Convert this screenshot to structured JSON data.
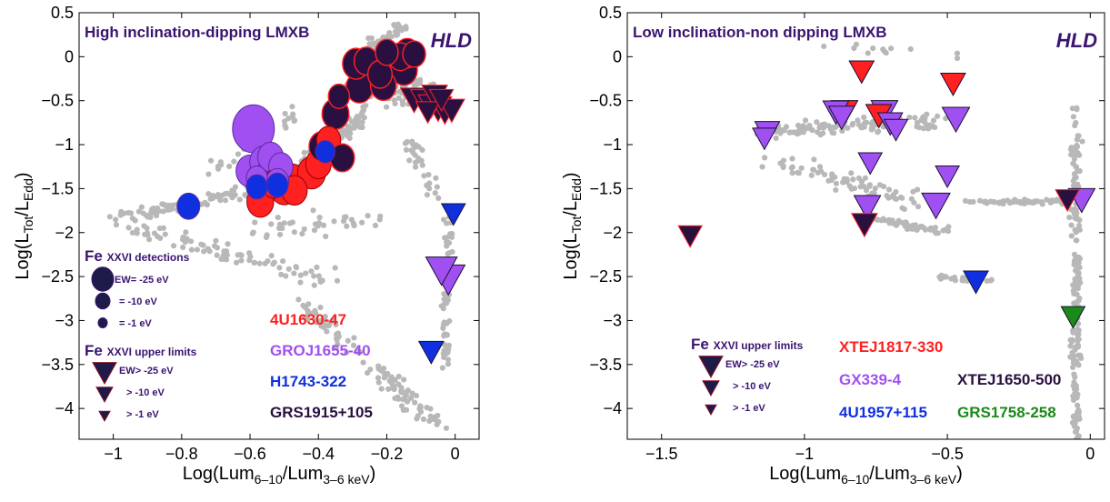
{
  "chart_data": [
    {
      "type": "scatter",
      "xlabel": "Log(Lum_{6–10}/Lum_{3–6 keV})",
      "ylabel": "Log(L_{Tot}/L_{Edd})",
      "xlim": [
        -1.1,
        0.07
      ],
      "ylim": [
        -4.35,
        0.5
      ],
      "xticks": [
        -1,
        -0.8,
        -0.6,
        -0.4,
        -0.2,
        0
      ],
      "xtick_labels": [
        "−1",
        "−0.8",
        "−0.6",
        "−0.4",
        "−0.2",
        "0"
      ],
      "yticks": [
        0.5,
        0,
        -0.5,
        -1,
        -1.5,
        -2,
        -2.5,
        -3,
        -3.5,
        -4
      ],
      "ytick_labels": [
        "0.5",
        "0",
        "−0.5",
        "−1",
        "−1.5",
        "−2",
        "−2.5",
        "−3",
        "−3.5",
        "−4"
      ],
      "panel_title": "High inclination-dipping LMXB",
      "panel_tag": "HLD",
      "legend": {
        "detections_title": [
          "Fe",
          "XXVI detections"
        ],
        "detections": [
          "EW= -25 eV",
          "= -10 eV",
          "= -1 eV"
        ],
        "limits_title": [
          "Fe",
          "XXVI upper limits"
        ],
        "limits": [
          "EW> -25 eV",
          "> -10 eV",
          "> -1 eV"
        ]
      },
      "sources": [
        {
          "name": "4U1630-47",
          "color": "#ff2020"
        },
        {
          "name": "GROJ1655-40",
          "color": "#a050f0"
        },
        {
          "name": "H1743-322",
          "color": "#1030e0"
        },
        {
          "name": "GRS1915+105",
          "color": "#2a1040"
        }
      ],
      "detections": [
        {
          "source": "GROJ1655-40",
          "x": -0.59,
          "y": -0.82,
          "ew": 25
        },
        {
          "source": "GROJ1655-40",
          "x": -0.6,
          "y": -1.3,
          "ew": 9
        },
        {
          "source": "GROJ1655-40",
          "x": -0.56,
          "y": -1.2,
          "ew": 9
        },
        {
          "source": "GROJ1655-40",
          "x": -0.54,
          "y": -1.14,
          "ew": 7
        },
        {
          "source": "GROJ1655-40",
          "x": -0.54,
          "y": -1.32,
          "ew": 8
        },
        {
          "source": "GROJ1655-40",
          "x": -0.51,
          "y": -1.25,
          "ew": 6
        },
        {
          "source": "GROJ1655-40",
          "x": -0.52,
          "y": -1.42,
          "ew": 5
        },
        {
          "source": "GROJ1655-40",
          "x": -0.58,
          "y": -1.38,
          "ew": 4
        },
        {
          "source": "4U1630-47",
          "x": -0.57,
          "y": -1.65,
          "ew": 8
        },
        {
          "source": "4U1630-47",
          "x": -0.5,
          "y": -1.5,
          "ew": 9
        },
        {
          "source": "4U1630-47",
          "x": -0.48,
          "y": -1.4,
          "ew": 9
        },
        {
          "source": "4U1630-47",
          "x": -0.42,
          "y": -1.32,
          "ew": 9
        },
        {
          "source": "4U1630-47",
          "x": -0.47,
          "y": -1.52,
          "ew": 7
        },
        {
          "source": "4U1630-47",
          "x": -0.4,
          "y": -1.22,
          "ew": 7
        },
        {
          "source": "4U1630-47",
          "x": -0.37,
          "y": -0.95,
          "ew": 6
        },
        {
          "source": "4U1630-47",
          "x": -0.53,
          "y": -1.45,
          "ew": 6
        },
        {
          "source": "H1743-322",
          "x": -0.78,
          "y": -1.7,
          "ew": 5
        },
        {
          "source": "H1743-322",
          "x": -0.58,
          "y": -1.48,
          "ew": 4
        },
        {
          "source": "H1743-322",
          "x": -0.52,
          "y": -1.46,
          "ew": 4
        },
        {
          "source": "H1743-322",
          "x": -0.38,
          "y": -1.08,
          "ew": 3
        },
        {
          "source": "GRS1915+105",
          "x": -0.35,
          "y": -0.65,
          "ew": 8
        },
        {
          "source": "GRS1915+105",
          "x": -0.39,
          "y": -1.02,
          "ew": 7
        },
        {
          "source": "GRS1915+105",
          "x": -0.33,
          "y": -1.15,
          "ew": 6
        },
        {
          "source": "GRS1915+105",
          "x": -0.34,
          "y": -0.45,
          "ew": 4
        },
        {
          "source": "GRS1915+105",
          "x": -0.28,
          "y": -0.35,
          "ew": 8
        },
        {
          "source": "GRS1915+105",
          "x": -0.29,
          "y": -0.08,
          "ew": 8
        },
        {
          "source": "GRS1915+105",
          "x": -0.26,
          "y": -0.05,
          "ew": 6
        },
        {
          "source": "GRS1915+105",
          "x": -0.22,
          "y": -0.2,
          "ew": 6
        },
        {
          "source": "GRS1915+105",
          "x": -0.18,
          "y": -0.05,
          "ew": 8
        },
        {
          "source": "GRS1915+105",
          "x": -0.16,
          "y": 0.0,
          "ew": 6
        },
        {
          "source": "GRS1915+105",
          "x": -0.15,
          "y": -0.15,
          "ew": 8
        },
        {
          "source": "GRS1915+105",
          "x": -0.14,
          "y": 0.04,
          "ew": 7
        },
        {
          "source": "GRS1915+105",
          "x": -0.2,
          "y": 0.05,
          "ew": 5
        },
        {
          "source": "GRS1915+105",
          "x": -0.12,
          "y": 0.03,
          "ew": 5
        },
        {
          "source": "GRS1915+105",
          "x": -0.21,
          "y": -0.33,
          "ew": 7
        }
      ],
      "upper_limits": [
        {
          "source": "GRS1915+105",
          "x": -0.12,
          "y": -0.48,
          "ew": 12
        },
        {
          "source": "GRS1915+105",
          "x": -0.09,
          "y": -0.5,
          "ew": 12
        },
        {
          "source": "GRS1915+105",
          "x": -0.07,
          "y": -0.55,
          "ew": 10
        },
        {
          "source": "GRS1915+105",
          "x": -0.05,
          "y": -0.58,
          "ew": 12
        },
        {
          "source": "GRS1915+105",
          "x": -0.03,
          "y": -0.62,
          "ew": 10
        },
        {
          "source": "GRS1915+105",
          "x": -0.01,
          "y": -0.6,
          "ew": 10
        },
        {
          "source": "GRS1915+105",
          "x": -0.06,
          "y": -0.44,
          "ew": 10
        },
        {
          "source": "GRS1915+105",
          "x": -0.08,
          "y": -0.62,
          "ew": 8
        },
        {
          "source": "GRS1915+105",
          "x": -0.04,
          "y": -0.48,
          "ew": 8
        },
        {
          "source": "H1743-322",
          "x": -0.005,
          "y": -1.78,
          "ew": 8
        },
        {
          "source": "H1743-322",
          "x": -0.07,
          "y": -3.35,
          "ew": 9
        },
        {
          "source": "GROJ1655-40",
          "x": -0.04,
          "y": -2.42,
          "ew": 17
        },
        {
          "source": "GROJ1655-40",
          "x": -0.02,
          "y": -2.52,
          "ew": 20
        }
      ]
    },
    {
      "type": "scatter",
      "xlabel": "Log(Lum_{6–10}/Lum_{3–6 keV})",
      "ylabel": "Log(L_{Tot}/L_{Edd})",
      "xlim": [
        -1.62,
        0.05
      ],
      "ylim": [
        -4.35,
        0.5
      ],
      "xticks": [
        -1.5,
        -1,
        -0.5,
        0
      ],
      "xtick_labels": [
        "−1.5",
        "−1",
        "−0.5",
        "0"
      ],
      "yticks": [
        0.5,
        0,
        -0.5,
        -1,
        -1.5,
        -2,
        -2.5,
        -3,
        -3.5,
        -4
      ],
      "ytick_labels": [
        "0.5",
        "0",
        "−0.5",
        "−1",
        "−1.5",
        "−2",
        "−2.5",
        "−3",
        "−3.5",
        "−4"
      ],
      "panel_title": "Low inclination-non dipping LMXB",
      "panel_tag": "HLD",
      "legend": {
        "limits_title": [
          "Fe",
          "XXVI upper limits"
        ],
        "limits": [
          "EW> -25 eV",
          "> -10 eV",
          "> -1 eV"
        ]
      },
      "sources": [
        {
          "name": "XTEJ1817-330",
          "color": "#ff2020"
        },
        {
          "name": "GX339-4",
          "color": "#a050f0"
        },
        {
          "name": "XTEJ1650-500",
          "color": "#2a1040"
        },
        {
          "name": "4U1957+115",
          "color": "#1030e0"
        },
        {
          "name": "GRS1758-258",
          "color": "#1a8a1a"
        }
      ],
      "upper_limits": [
        {
          "source": "XTEJ1817-330",
          "x": -0.8,
          "y": -0.16,
          "ew": 9
        },
        {
          "source": "XTEJ1817-330",
          "x": -0.48,
          "y": -0.3,
          "ew": 9
        },
        {
          "source": "XTEJ1817-330",
          "x": -0.86,
          "y": -0.62,
          "ew": 11
        },
        {
          "source": "XTEJ1817-330",
          "x": -0.74,
          "y": -0.66,
          "ew": 10
        },
        {
          "source": "GX339-4",
          "x": -1.13,
          "y": -0.85,
          "ew": 9
        },
        {
          "source": "GX339-4",
          "x": -1.14,
          "y": -0.92,
          "ew": 8
        },
        {
          "source": "GX339-4",
          "x": -0.89,
          "y": -0.62,
          "ew": 10
        },
        {
          "source": "GX339-4",
          "x": -0.87,
          "y": -0.68,
          "ew": 10
        },
        {
          "source": "GX339-4",
          "x": -0.72,
          "y": -0.62,
          "ew": 11
        },
        {
          "source": "GX339-4",
          "x": -0.7,
          "y": -0.75,
          "ew": 9
        },
        {
          "source": "GX339-4",
          "x": -0.68,
          "y": -0.82,
          "ew": 8
        },
        {
          "source": "GX339-4",
          "x": -0.47,
          "y": -0.7,
          "ew": 12
        },
        {
          "source": "GX339-4",
          "x": -0.77,
          "y": -1.2,
          "ew": 8
        },
        {
          "source": "GX339-4",
          "x": -0.5,
          "y": -1.35,
          "ew": 8
        },
        {
          "source": "GX339-4",
          "x": -0.78,
          "y": -1.7,
          "ew": 11
        },
        {
          "source": "GX339-4",
          "x": -0.54,
          "y": -1.68,
          "ew": 13
        },
        {
          "source": "GX339-4",
          "x": -0.03,
          "y": -1.62,
          "ew": 11
        },
        {
          "source": "XTEJ1650-500",
          "x": -1.4,
          "y": -2.03,
          "ew": 8
        },
        {
          "source": "XTEJ1650-500",
          "x": -0.79,
          "y": -1.9,
          "ew": 10
        },
        {
          "source": "XTEJ1650-500",
          "x": -0.08,
          "y": -1.62,
          "ew": 8
        },
        {
          "source": "4U1957+115",
          "x": -0.4,
          "y": -2.55,
          "ew": 9
        },
        {
          "source": "GRS1758-258",
          "x": -0.06,
          "y": -2.95,
          "ew": 8
        }
      ]
    }
  ]
}
